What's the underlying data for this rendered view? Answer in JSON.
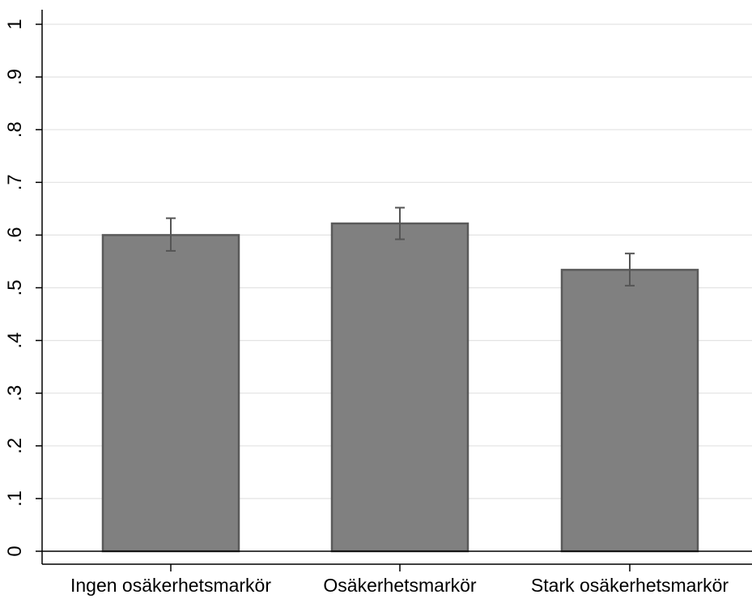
{
  "chart_data": {
    "type": "bar",
    "categories": [
      "Ingen osäkerhetsmarkör",
      "Osäkerhetsmarkör",
      "Stark osäkerhetsmarkör"
    ],
    "values": [
      0.6,
      0.622,
      0.534
    ],
    "error_low": [
      0.57,
      0.592,
      0.504
    ],
    "error_high": [
      0.632,
      0.652,
      0.565
    ],
    "ylim": [
      0,
      1
    ],
    "yticks": [
      0,
      0.1,
      0.2,
      0.3,
      0.4,
      0.5,
      0.6,
      0.7,
      0.8,
      0.9,
      1
    ],
    "ytick_labels": [
      "0",
      ".1",
      ".2",
      ".3",
      ".4",
      ".5",
      ".6",
      ".7",
      ".8",
      ".9",
      "1"
    ],
    "grid": true,
    "colors": {
      "bar": "#808080",
      "bar_outline": "#5a5a5a",
      "error_bar": "#555555",
      "grid": "#e3e3e3"
    }
  }
}
